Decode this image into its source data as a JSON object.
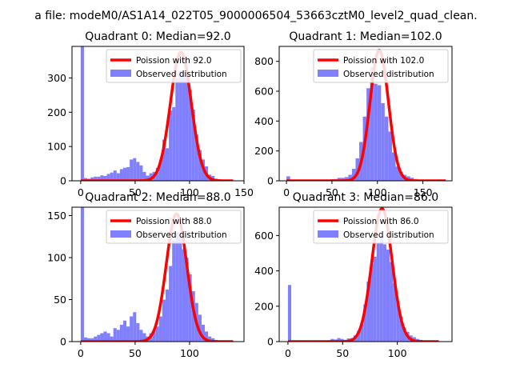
{
  "figure": {
    "suptitle": "a file: modeM0/AS1A14_022T05_9000006504_53663cztM0_level2_quad_clean."
  },
  "colors": {
    "hist": "#8080ff",
    "poisson": "#ff0000",
    "axes": "#000000"
  },
  "chart_data": [
    {
      "type": "bar",
      "title": "Quadrant 0: Median=92.0",
      "median": 92.0,
      "xlim": [
        -8,
        150
      ],
      "ylim": [
        0,
        392
      ],
      "xticks": [
        0,
        50,
        100,
        150
      ],
      "yticks": [
        0,
        100,
        200,
        300
      ],
      "bin_width": 3,
      "bins": [
        0,
        3,
        6,
        9,
        12,
        15,
        18,
        21,
        24,
        27,
        30,
        33,
        36,
        39,
        42,
        45,
        48,
        51,
        54,
        57,
        60,
        63,
        66,
        69,
        72,
        75,
        78,
        81,
        84,
        87,
        90,
        93,
        96,
        99,
        102,
        105,
        108,
        111,
        114,
        117,
        120,
        123,
        126
      ],
      "values": [
        392,
        8,
        6,
        10,
        12,
        12,
        16,
        14,
        20,
        24,
        30,
        22,
        34,
        38,
        40,
        62,
        66,
        55,
        45,
        26,
        15,
        22,
        26,
        38,
        62,
        120,
        95,
        205,
        215,
        298,
        320,
        322,
        300,
        265,
        208,
        135,
        90,
        62,
        42,
        18,
        14,
        6,
        3
      ],
      "legend": [
        "Poission with 92.0",
        "Observed distribution"
      ],
      "poisson": {
        "lambda": 92.0,
        "peak": 375,
        "x_range": [
          0,
          140
        ]
      }
    },
    {
      "type": "bar",
      "title": "Quadrant 1: Median=102.0",
      "median": 102.0,
      "xlim": [
        -8,
        182
      ],
      "ylim": [
        0,
        900
      ],
      "xticks": [
        0,
        50,
        100,
        150
      ],
      "yticks": [
        0,
        200,
        400,
        600,
        800
      ],
      "bin_width": 4,
      "bins": [
        0,
        4,
        8,
        12,
        16,
        20,
        24,
        28,
        32,
        36,
        40,
        44,
        48,
        52,
        56,
        60,
        64,
        68,
        72,
        76,
        80,
        84,
        88,
        92,
        96,
        100,
        104,
        108,
        112,
        116,
        120,
        124,
        128,
        132,
        136,
        140,
        144,
        148,
        152,
        156,
        160,
        164
      ],
      "values": [
        30,
        0,
        0,
        0,
        0,
        0,
        0,
        2,
        2,
        4,
        8,
        6,
        10,
        12,
        20,
        20,
        25,
        40,
        80,
        150,
        260,
        430,
        620,
        760,
        650,
        640,
        520,
        430,
        330,
        190,
        95,
        60,
        40,
        30,
        20,
        12,
        8,
        5,
        3,
        2,
        1,
        0
      ],
      "legend": [
        "Poission with 102.0",
        "Observed distribution"
      ],
      "poisson": {
        "lambda": 102.0,
        "peak": 875,
        "x_range": [
          0,
          175
        ]
      }
    },
    {
      "type": "bar",
      "title": "Quadrant 2: Median=88.0",
      "median": 88.0,
      "xlim": [
        -8,
        150
      ],
      "ylim": [
        0,
        160
      ],
      "xticks": [
        0,
        50,
        100
      ],
      "yticks": [
        0,
        50,
        100,
        150
      ],
      "bin_width": 3,
      "bins": [
        0,
        3,
        6,
        9,
        12,
        15,
        18,
        21,
        24,
        27,
        30,
        33,
        36,
        39,
        42,
        45,
        48,
        51,
        54,
        57,
        60,
        63,
        66,
        69,
        72,
        75,
        78,
        81,
        84,
        87,
        90,
        93,
        96,
        99,
        102,
        105,
        108,
        111,
        114,
        117,
        120,
        123,
        126
      ],
      "values": [
        160,
        5,
        4,
        4,
        6,
        8,
        10,
        12,
        10,
        6,
        16,
        14,
        20,
        25,
        18,
        30,
        35,
        22,
        14,
        10,
        6,
        10,
        14,
        18,
        30,
        50,
        62,
        90,
        120,
        130,
        128,
        110,
        100,
        80,
        60,
        46,
        32,
        20,
        12,
        6,
        4,
        2,
        1
      ],
      "legend": [
        "Poission with 88.0",
        "Observed distribution"
      ],
      "poisson": {
        "lambda": 88.0,
        "peak": 152,
        "x_range": [
          0,
          140
        ]
      }
    },
    {
      "type": "bar",
      "title": "Quadrant 3: Median=86.0",
      "median": 86.0,
      "xlim": [
        -8,
        150
      ],
      "ylim": [
        0,
        760
      ],
      "xticks": [
        0,
        50,
        100
      ],
      "yticks": [
        0,
        200,
        400,
        600
      ],
      "bin_width": 3,
      "bins": [
        0,
        3,
        6,
        9,
        12,
        15,
        18,
        21,
        24,
        27,
        30,
        33,
        36,
        39,
        42,
        45,
        48,
        51,
        54,
        57,
        60,
        63,
        66,
        69,
        72,
        75,
        78,
        81,
        84,
        87,
        90,
        93,
        96,
        99,
        102,
        105,
        108,
        111,
        114,
        117,
        120,
        123,
        126,
        129,
        132
      ],
      "values": [
        320,
        0,
        0,
        0,
        0,
        0,
        0,
        0,
        2,
        2,
        4,
        6,
        8,
        15,
        12,
        20,
        15,
        10,
        18,
        20,
        35,
        60,
        100,
        210,
        340,
        440,
        480,
        560,
        600,
        550,
        520,
        450,
        330,
        220,
        140,
        80,
        55,
        35,
        25,
        15,
        10,
        5,
        3,
        2,
        1
      ],
      "legend": [
        "Poission with 86.0",
        "Observed distribution"
      ],
      "poisson": {
        "lambda": 86.0,
        "peak": 752,
        "x_range": [
          0,
          138
        ]
      }
    }
  ]
}
